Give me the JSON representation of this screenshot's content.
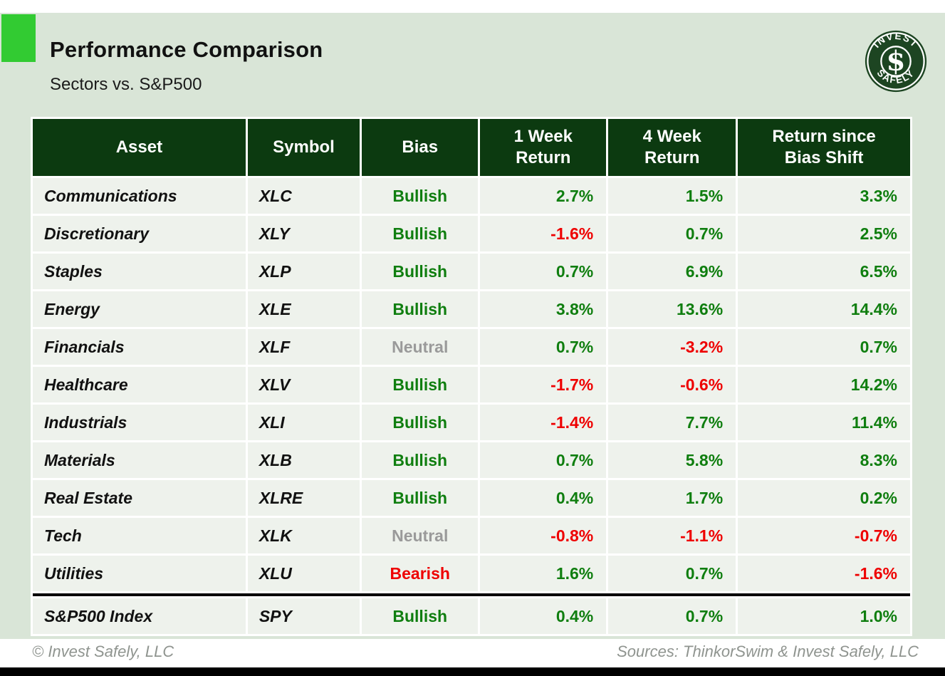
{
  "header": {
    "title": "Performance Comparison",
    "subtitle": "Sectors vs. S&P500",
    "logo": {
      "arc_top": "INVEST",
      "arc_bottom": "SAFELY",
      "monogram": "$"
    }
  },
  "table": {
    "columns": [
      "Asset",
      "Symbol",
      "Bias",
      "1 Week\nReturn",
      "4 Week\nReturn",
      "Return since\nBias Shift"
    ],
    "rows": [
      {
        "asset": "Communications",
        "symbol": "XLC",
        "bias": {
          "text": "Bullish",
          "color": "green"
        },
        "week1": {
          "text": "2.7%",
          "color": "green"
        },
        "week4": {
          "text": "1.5%",
          "color": "green"
        },
        "since": {
          "text": "3.3%",
          "color": "green"
        },
        "separator_before": false
      },
      {
        "asset": "Discretionary",
        "symbol": "XLY",
        "bias": {
          "text": "Bullish",
          "color": "green"
        },
        "week1": {
          "text": "-1.6%",
          "color": "red"
        },
        "week4": {
          "text": "0.7%",
          "color": "green"
        },
        "since": {
          "text": "2.5%",
          "color": "green"
        },
        "separator_before": false
      },
      {
        "asset": "Staples",
        "symbol": "XLP",
        "bias": {
          "text": "Bullish",
          "color": "green"
        },
        "week1": {
          "text": "0.7%",
          "color": "green"
        },
        "week4": {
          "text": "6.9%",
          "color": "green"
        },
        "since": {
          "text": "6.5%",
          "color": "green"
        },
        "separator_before": false
      },
      {
        "asset": "Energy",
        "symbol": "XLE",
        "bias": {
          "text": "Bullish",
          "color": "green"
        },
        "week1": {
          "text": "3.8%",
          "color": "green"
        },
        "week4": {
          "text": "13.6%",
          "color": "green"
        },
        "since": {
          "text": "14.4%",
          "color": "green"
        },
        "separator_before": false
      },
      {
        "asset": "Financials",
        "symbol": "XLF",
        "bias": {
          "text": "Neutral",
          "color": "gray"
        },
        "week1": {
          "text": "0.7%",
          "color": "green"
        },
        "week4": {
          "text": "-3.2%",
          "color": "red"
        },
        "since": {
          "text": "0.7%",
          "color": "green"
        },
        "separator_before": false
      },
      {
        "asset": "Healthcare",
        "symbol": "XLV",
        "bias": {
          "text": "Bullish",
          "color": "green"
        },
        "week1": {
          "text": "-1.7%",
          "color": "red"
        },
        "week4": {
          "text": "-0.6%",
          "color": "red"
        },
        "since": {
          "text": "14.2%",
          "color": "green"
        },
        "separator_before": false
      },
      {
        "asset": "Industrials",
        "symbol": "XLI",
        "bias": {
          "text": "Bullish",
          "color": "green"
        },
        "week1": {
          "text": "-1.4%",
          "color": "red"
        },
        "week4": {
          "text": "7.7%",
          "color": "green"
        },
        "since": {
          "text": "11.4%",
          "color": "green"
        },
        "separator_before": false
      },
      {
        "asset": "Materials",
        "symbol": "XLB",
        "bias": {
          "text": "Bullish",
          "color": "green"
        },
        "week1": {
          "text": "0.7%",
          "color": "green"
        },
        "week4": {
          "text": "5.8%",
          "color": "green"
        },
        "since": {
          "text": "8.3%",
          "color": "green"
        },
        "separator_before": false
      },
      {
        "asset": "Real Estate",
        "symbol": "XLRE",
        "bias": {
          "text": "Bullish",
          "color": "green"
        },
        "week1": {
          "text": "0.4%",
          "color": "green"
        },
        "week4": {
          "text": "1.7%",
          "color": "green"
        },
        "since": {
          "text": "0.2%",
          "color": "green"
        },
        "separator_before": false
      },
      {
        "asset": "Tech",
        "symbol": "XLK",
        "bias": {
          "text": "Neutral",
          "color": "gray"
        },
        "week1": {
          "text": "-0.8%",
          "color": "red"
        },
        "week4": {
          "text": "-1.1%",
          "color": "red"
        },
        "since": {
          "text": "-0.7%",
          "color": "red"
        },
        "separator_before": false
      },
      {
        "asset": "Utilities",
        "symbol": "XLU",
        "bias": {
          "text": "Bearish",
          "color": "red"
        },
        "week1": {
          "text": "1.6%",
          "color": "green"
        },
        "week4": {
          "text": "0.7%",
          "color": "green"
        },
        "since": {
          "text": "-1.6%",
          "color": "red"
        },
        "separator_before": false
      },
      {
        "asset": "S&P500 Index",
        "symbol": "SPY",
        "bias": {
          "text": "Bullish",
          "color": "green"
        },
        "week1": {
          "text": "0.4%",
          "color": "green"
        },
        "week4": {
          "text": "0.7%",
          "color": "green"
        },
        "since": {
          "text": "1.0%",
          "color": "green"
        },
        "separator_before": true
      }
    ]
  },
  "footer": {
    "copyright": "© Invest Safely, LLC",
    "sources": "Sources: ThinkorSwim & Invest Safely, LLC"
  },
  "colors": {
    "page_bg": "#d9e5d7",
    "row_bg": "#eef2ec",
    "table_header_bg": "#0c3a10",
    "positive_green": "#0f7e0f",
    "negative_red": "#ee0000",
    "neutral_gray": "#9a9a9a",
    "accent_green": "#32cb32",
    "logo_green": "#1d4522",
    "footer_gray": "#8f948f"
  }
}
